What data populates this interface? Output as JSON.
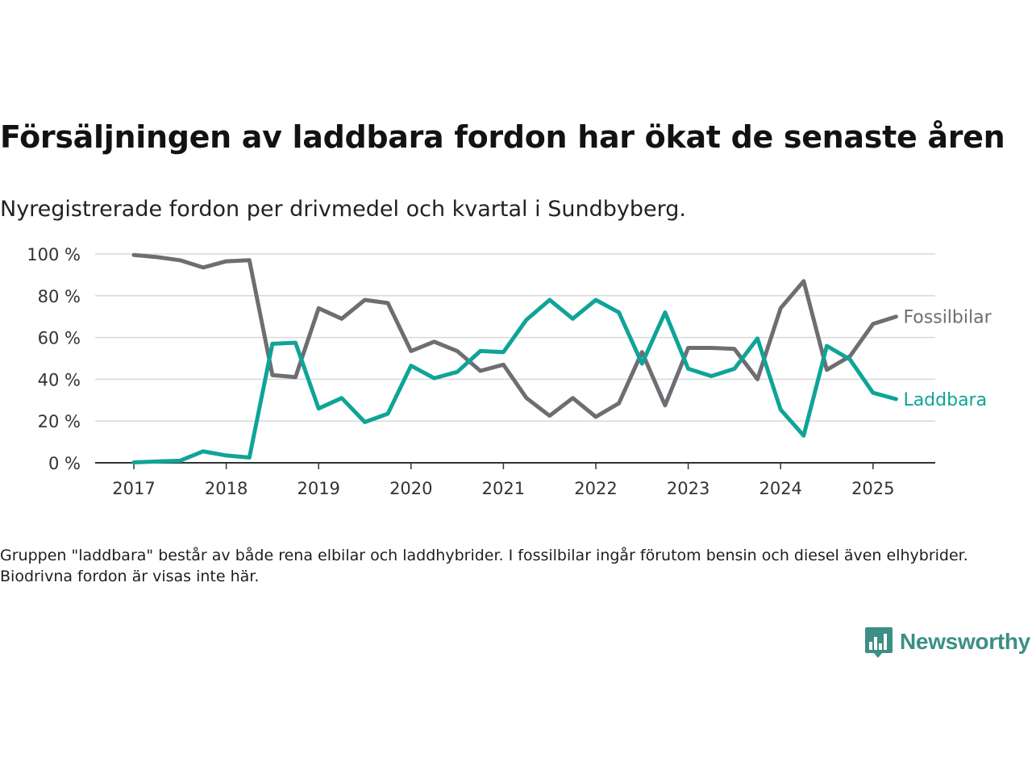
{
  "title": "Försäljningen av laddbara fordon har ökat de senaste åren",
  "subtitle": "Nyregistrerade fordon per drivmedel och kvartal i Sundbyberg.",
  "footnote": "Gruppen \"laddbara\" består av både rena elbilar och laddhybrider. I fossilbilar ingår förutom bensin och diesel även elhybrider. Biodrivna fordon är visas inte här.",
  "brand": {
    "name": "Newsworthy",
    "icon": "newsworthy-logo-icon",
    "color": "#3c8f85"
  },
  "colors": {
    "fossil": "#6e6d72",
    "laddbara": "#0fa497",
    "grid": "#d9d9d9",
    "axis": "#333333"
  },
  "chart_data": {
    "type": "line",
    "x": [
      "2017 Q1",
      "2017 Q2",
      "2017 Q3",
      "2017 Q4",
      "2018 Q1",
      "2018 Q2",
      "2018 Q3",
      "2018 Q4",
      "2019 Q1",
      "2019 Q2",
      "2019 Q3",
      "2019 Q4",
      "2020 Q1",
      "2020 Q2",
      "2020 Q3",
      "2020 Q4",
      "2021 Q1",
      "2021 Q2",
      "2021 Q3",
      "2021 Q4",
      "2022 Q1",
      "2022 Q2",
      "2022 Q3",
      "2022 Q4",
      "2023 Q1",
      "2023 Q2",
      "2023 Q3",
      "2023 Q4",
      "2024 Q1",
      "2024 Q2",
      "2024 Q3",
      "2024 Q4",
      "2025 Q1",
      "2025 Q2"
    ],
    "series": [
      {
        "name": "Fossilbilar",
        "color": "#6e6d72",
        "values": [
          99.5,
          98.5,
          97,
          93.5,
          96.5,
          97,
          42,
          41,
          74,
          69,
          78,
          76.5,
          53.5,
          58,
          53.5,
          44,
          47,
          31,
          22.5,
          31,
          22,
          28.5,
          53,
          27.5,
          55,
          55,
          54.5,
          40,
          74,
          87,
          44.5,
          51,
          66.5,
          70
        ]
      },
      {
        "name": "Laddbara",
        "color": "#0fa497",
        "values": [
          0.2,
          0.6,
          1,
          5.5,
          3.5,
          2.5,
          57,
          57.5,
          26,
          31,
          19.5,
          23.5,
          46.5,
          40.5,
          43.5,
          53.5,
          53,
          68.5,
          78,
          69,
          78,
          72,
          47.5,
          72,
          45,
          41.5,
          45,
          59.5,
          25.5,
          13,
          56,
          49.5,
          33.5,
          30.5
        ]
      }
    ],
    "xticks": [
      "2017",
      "2018",
      "2019",
      "2020",
      "2021",
      "2022",
      "2023",
      "2024",
      "2025"
    ],
    "yticks": [
      "0 %",
      "20 %",
      "40 %",
      "60 %",
      "80 %",
      "100 %"
    ],
    "ylim": [
      0,
      100
    ],
    "grid": true,
    "legend": "direct labels at line ends"
  }
}
